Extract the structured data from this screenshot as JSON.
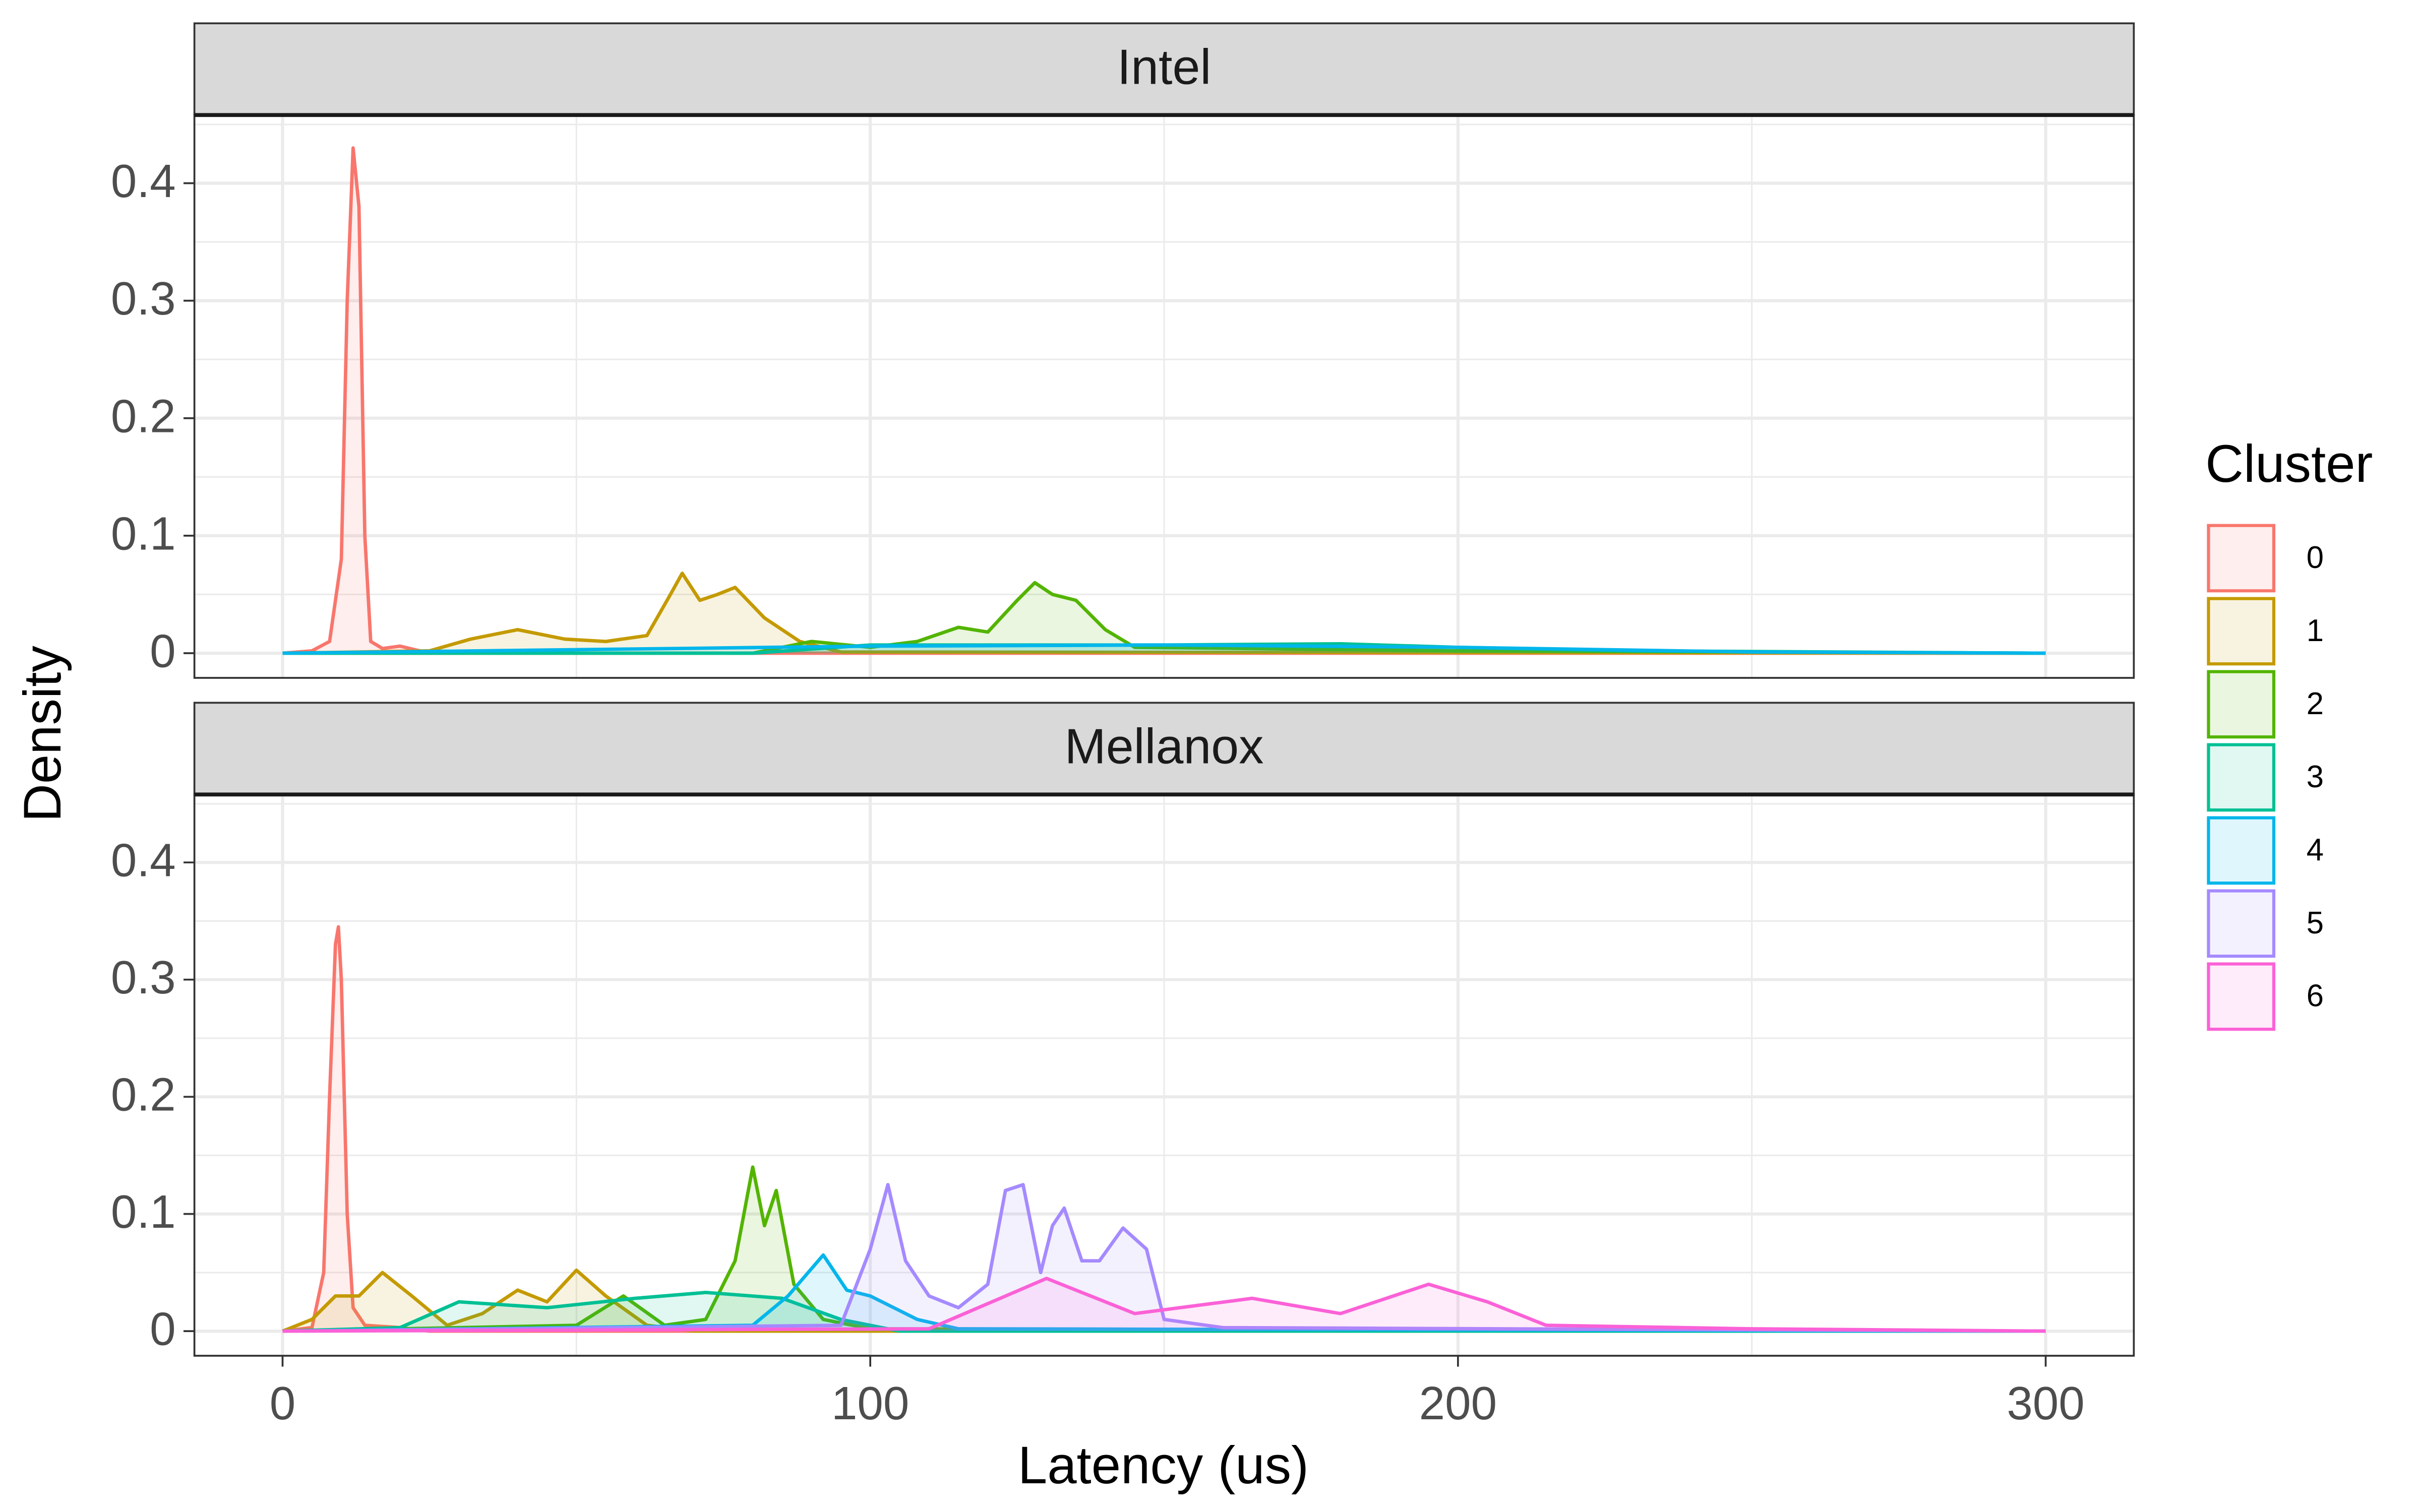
{
  "chart_data": {
    "type": "area",
    "x_label": "Latency (us)",
    "y_label": "Density",
    "legend_title": "Cluster",
    "legend_position": "right",
    "grid": true,
    "xlim": [
      -15,
      315
    ],
    "xticks": [
      0,
      100,
      200,
      300
    ],
    "xminor": [
      50,
      150,
      250
    ],
    "ylim": [
      -0.021,
      0.458
    ],
    "yticks": [
      0.0,
      0.1,
      0.2,
      0.3,
      0.4
    ],
    "yminor": [
      0.05,
      0.15,
      0.25,
      0.35,
      0.45
    ],
    "legend": [
      {
        "name": "0",
        "color": "#F8766D"
      },
      {
        "name": "1",
        "color": "#C49A00"
      },
      {
        "name": "2",
        "color": "#53B400"
      },
      {
        "name": "3",
        "color": "#00C094"
      },
      {
        "name": "4",
        "color": "#00B6EB"
      },
      {
        "name": "5",
        "color": "#A58AFF"
      },
      {
        "name": "6",
        "color": "#FB61D7"
      }
    ],
    "facets": [
      {
        "title": "Intel",
        "series": [
          {
            "x": [
              0,
              5,
              8,
              10,
              11,
              12,
              13,
              14,
              15,
              17,
              20,
              25,
              300
            ],
            "values": [
              0,
              0.002,
              0.01,
              0.08,
              0.3,
              0.43,
              0.38,
              0.1,
              0.01,
              0.004,
              0.006,
              0,
              0
            ]
          },
          {
            "x": [
              0,
              25,
              32,
              40,
              48,
              55,
              62,
              66,
              68,
              71,
              74,
              77,
              82,
              88,
              95,
              300
            ],
            "values": [
              0,
              0.002,
              0.012,
              0.02,
              0.012,
              0.01,
              0.015,
              0.05,
              0.068,
              0.045,
              0.05,
              0.056,
              0.03,
              0.01,
              0.001,
              0
            ]
          },
          {
            "x": [
              0,
              80,
              90,
              100,
              108,
              115,
              120,
              125,
              128,
              131,
              135,
              140,
              145,
              200,
              300
            ],
            "values": [
              0,
              0,
              0.01,
              0.005,
              0.01,
              0.022,
              0.018,
              0.045,
              0.06,
              0.05,
              0.045,
              0.02,
              0.005,
              0.002,
              0
            ]
          },
          {
            "x": [
              0,
              80,
              100,
              150,
              180,
              200,
              230,
              300
            ],
            "values": [
              0,
              0,
              0.007,
              0.007,
              0.008,
              0.005,
              0.002,
              0
            ]
          },
          {
            "x": [
              0,
              100,
              150,
              200,
              250,
              300
            ],
            "values": [
              0,
              0.006,
              0.007,
              0.005,
              0.001,
              0
            ]
          }
        ]
      },
      {
        "title": "Mellanox",
        "series": [
          {
            "x": [
              0,
              5,
              7,
              8,
              9,
              9.5,
              10,
              11,
              12,
              14,
              20,
              25,
              300
            ],
            "values": [
              0,
              0.003,
              0.05,
              0.2,
              0.33,
              0.345,
              0.3,
              0.1,
              0.02,
              0.005,
              0.003,
              0,
              0
            ]
          },
          {
            "x": [
              0,
              5,
              9,
              13,
              17,
              22,
              28,
              34,
              40,
              45,
              50,
              55,
              62,
              70,
              300
            ],
            "values": [
              0,
              0.01,
              0.03,
              0.03,
              0.05,
              0.03,
              0.005,
              0.015,
              0.035,
              0.025,
              0.052,
              0.03,
              0.005,
              0,
              0
            ]
          },
          {
            "x": [
              0,
              50,
              58,
              65,
              72,
              77,
              80,
              82,
              84,
              87,
              92,
              100,
              300
            ],
            "values": [
              0,
              0.005,
              0.03,
              0.005,
              0.01,
              0.06,
              0.14,
              0.09,
              0.12,
              0.04,
              0.01,
              0.002,
              0
            ]
          },
          {
            "x": [
              0,
              20,
              30,
              45,
              60,
              72,
              85,
              95,
              105,
              300
            ],
            "values": [
              0,
              0.003,
              0.025,
              0.02,
              0.028,
              0.033,
              0.028,
              0.01,
              0,
              0
            ]
          },
          {
            "x": [
              0,
              80,
              86,
              92,
              96,
              100,
              108,
              115,
              300
            ],
            "values": [
              0,
              0.005,
              0.03,
              0.065,
              0.035,
              0.03,
              0.01,
              0.002,
              0
            ]
          },
          {
            "x": [
              0,
              95,
              100,
              103,
              106,
              110,
              115,
              120,
              123,
              126,
              129,
              131,
              133,
              136,
              139,
              143,
              147,
              150,
              160,
              300
            ],
            "values": [
              0,
              0.005,
              0.07,
              0.125,
              0.06,
              0.03,
              0.02,
              0.04,
              0.12,
              0.125,
              0.05,
              0.09,
              0.105,
              0.06,
              0.06,
              0.088,
              0.07,
              0.01,
              0.003,
              0
            ]
          },
          {
            "x": [
              0,
              110,
              130,
              145,
              165,
              180,
              195,
              205,
              215,
              250,
              300
            ],
            "values": [
              0,
              0.002,
              0.045,
              0.015,
              0.028,
              0.015,
              0.04,
              0.025,
              0.005,
              0.002,
              0
            ]
          }
        ]
      }
    ]
  }
}
